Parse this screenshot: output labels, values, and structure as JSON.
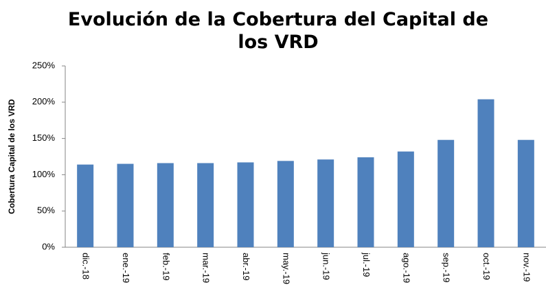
{
  "chart_data": {
    "type": "bar",
    "title": "Evolución de la Cobertura del Capital de los VRD",
    "y_label": "Cobertura Capital de los VRD",
    "categories": [
      "dic.-18",
      "ene.-19",
      "feb.-19",
      "mar.-19",
      "abr.-19",
      "may.-19",
      "jun.-19",
      "jul.-19",
      "ago.-19",
      "sep.-19",
      "oct.-19",
      "nov.-19"
    ],
    "values": [
      114,
      115,
      116,
      116,
      117,
      119,
      121,
      124,
      132,
      148,
      204,
      148
    ],
    "color": "#4f81bd",
    "ylim": [
      0,
      250
    ],
    "yticks": [
      {
        "value": 0,
        "label": "0%"
      },
      {
        "value": 50,
        "label": "50%"
      },
      {
        "value": 100,
        "label": "100%"
      },
      {
        "value": 150,
        "label": "150%"
      },
      {
        "value": 200,
        "label": "200%"
      },
      {
        "value": 250,
        "label": "250%"
      }
    ],
    "grid": false
  }
}
